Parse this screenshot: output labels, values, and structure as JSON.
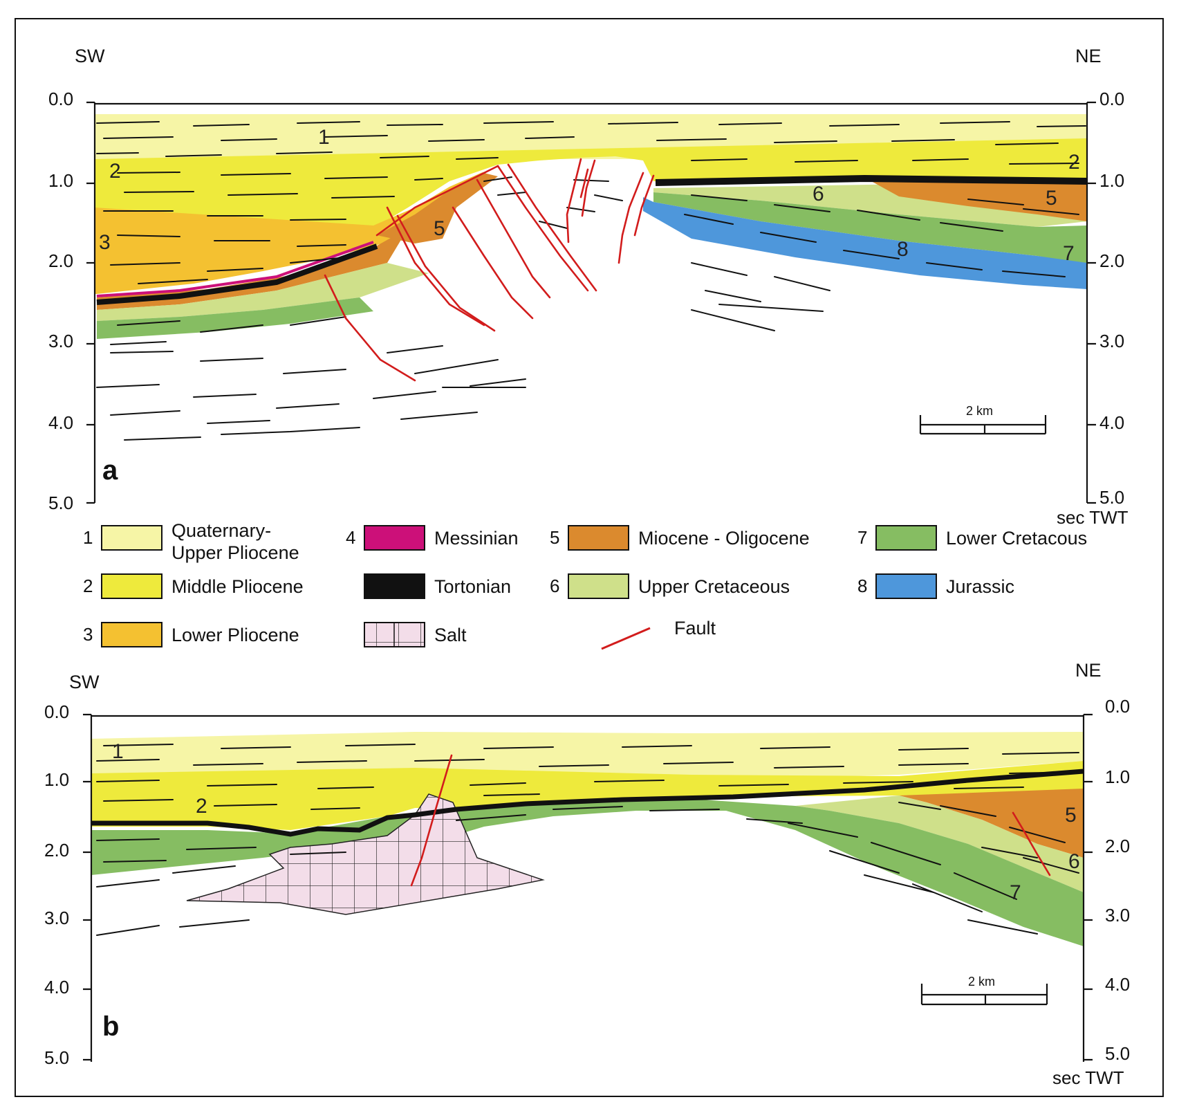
{
  "colors": {
    "unit1": "#f6f5a6",
    "unit2": "#eeea3c",
    "unit3": "#f4c131",
    "messinian": "#cc1079",
    "tortonian": "#111111",
    "unit5": "#db8a2e",
    "unit6": "#cfe08a",
    "unit7": "#86bd62",
    "unit8": "#4e97db",
    "salt": "#f3dde9",
    "fault": "#d21c1c"
  },
  "panels": [
    {
      "label": "a",
      "sw": "SW",
      "ne": "NE",
      "ticks": [
        "0.0",
        "1.0",
        "2.0",
        "3.0",
        "4.0",
        "5.0"
      ],
      "unit": "sec TWT",
      "scale": "2 km",
      "unit_labels": [
        "1",
        "2",
        "2",
        "3",
        "5",
        "5",
        "6",
        "7",
        "8"
      ]
    },
    {
      "label": "b",
      "sw": "SW",
      "ne": "NE",
      "ticks": [
        "0.0",
        "1.0",
        "2.0",
        "3.0",
        "4.0",
        "5.0"
      ],
      "unit": "sec TWT",
      "scale": "2 km",
      "unit_labels": [
        "1",
        "2",
        "5",
        "6",
        "7"
      ]
    }
  ],
  "legend": [
    {
      "num": "1",
      "text": [
        "Quaternary-",
        "Upper Pliocene"
      ],
      "color": "#f6f5a6",
      "pattern": "solid"
    },
    {
      "num": "2",
      "text": [
        "Middle Pliocene"
      ],
      "color": "#eeea3c",
      "pattern": "solid"
    },
    {
      "num": "3",
      "text": [
        "Lower Pliocene"
      ],
      "color": "#f4c131",
      "pattern": "solid"
    },
    {
      "num": "4",
      "text": [
        "Messinian"
      ],
      "color": "#cc1079",
      "pattern": "solid"
    },
    {
      "num": "",
      "text": [
        "Tortonian"
      ],
      "color": "#111111",
      "pattern": "solid"
    },
    {
      "num": "",
      "text": [
        "Salt"
      ],
      "color": "#f3dde9",
      "pattern": "grid"
    },
    {
      "num": "5",
      "text": [
        "Miocene - Oligocene"
      ],
      "color": "#db8a2e",
      "pattern": "solid"
    },
    {
      "num": "6",
      "text": [
        "Upper Cretaceous"
      ],
      "color": "#cfe08a",
      "pattern": "solid"
    },
    {
      "num": "",
      "text": [
        "Fault"
      ],
      "color": "#d21c1c",
      "pattern": "line"
    },
    {
      "num": "7",
      "text": [
        "Lower Cretacous"
      ],
      "color": "#86bd62",
      "pattern": "solid"
    },
    {
      "num": "8",
      "text": [
        "Jurassic"
      ],
      "color": "#4e97db",
      "pattern": "solid"
    }
  ]
}
